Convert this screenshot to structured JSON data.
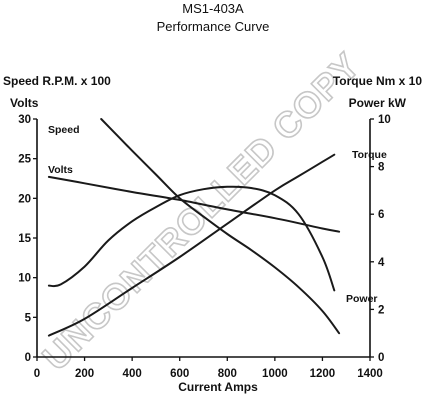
{
  "chart_data": {
    "type": "line",
    "title": "MS1-403A",
    "subtitle": "Performance Curve",
    "xlabel": "Current Amps",
    "left_axis_labels": [
      "Speed R.P.M. x 100",
      "Volts"
    ],
    "right_axis_labels": [
      "Torque Nm x 10",
      "Power kW"
    ],
    "xlim": [
      0,
      1400
    ],
    "ylim_left": [
      0,
      30
    ],
    "ylim_right": [
      0,
      10
    ],
    "x_ticks": [
      "0",
      "200",
      "400",
      "600",
      "800",
      "1000",
      "1200",
      "1400"
    ],
    "y_left_ticks": [
      "0",
      "5",
      "10",
      "15",
      "20",
      "25",
      "30"
    ],
    "y_right_ticks": [
      "0",
      "2",
      "4",
      "6",
      "8",
      "10"
    ],
    "grid": false,
    "series": [
      {
        "name": "Speed",
        "axis": "left",
        "x": [
          270,
          400,
          500,
          600,
          700,
          800,
          900,
          1000,
          1100,
          1200,
          1270
        ],
        "y": [
          30,
          26,
          23,
          20,
          17.7,
          15.5,
          13.5,
          11.3,
          8.8,
          5.8,
          3
        ]
      },
      {
        "name": "Volts",
        "axis": "left",
        "x": [
          50,
          200,
          400,
          600,
          800,
          1000,
          1200,
          1270
        ],
        "y": [
          22.7,
          21.9,
          20.8,
          19.8,
          18.6,
          17.5,
          16.2,
          15.8
        ]
      },
      {
        "name": "Torque",
        "axis": "right",
        "x": [
          50,
          200,
          400,
          600,
          800,
          1000,
          1100,
          1200,
          1250
        ],
        "y": [
          0.9,
          1.6,
          2.9,
          4.2,
          5.6,
          7.0,
          7.6,
          8.2,
          8.5
        ]
      },
      {
        "name": "Power",
        "axis": "right",
        "x": [
          50,
          100,
          200,
          300,
          400,
          500,
          600,
          700,
          800,
          900,
          1000,
          1100,
          1200,
          1250
        ],
        "y": [
          3.0,
          3.05,
          3.8,
          4.9,
          5.7,
          6.3,
          6.8,
          7.05,
          7.15,
          7.1,
          6.8,
          6.0,
          4.2,
          2.8
        ]
      }
    ]
  },
  "watermark": "UNCONTROLLED COPY"
}
